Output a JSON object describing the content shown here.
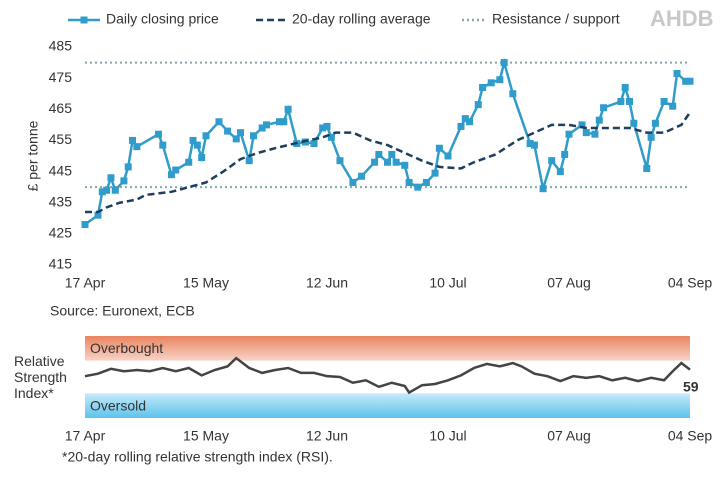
{
  "logo": "AHDB",
  "chart_data": [
    {
      "type": "line",
      "ylabel": "£ per tonne",
      "source": "Source: Euronext, ECB",
      "ylim": [
        415,
        485
      ],
      "yticks": [
        415,
        425,
        435,
        445,
        455,
        465,
        475,
        485
      ],
      "xlim": [
        "17 Apr",
        "04 Sep"
      ],
      "xticks": [
        "17 Apr",
        "15 May",
        "12 Jun",
        "10 Jul",
        "07 Aug",
        "04 Sep"
      ],
      "series": [
        {
          "name": "Daily closing price",
          "color": "#2f9ccb",
          "marker": "square",
          "x": [
            "17 Apr",
            "20 Apr",
            "21 Apr",
            "22 Apr",
            "23 Apr",
            "24 Apr",
            "26 Apr",
            "27 Apr",
            "28 Apr",
            "29 Apr",
            "04 May",
            "05 May",
            "07 May",
            "08 May",
            "11 May",
            "12 May",
            "13 May",
            "14 May",
            "15 May",
            "18 May",
            "20 May",
            "22 May",
            "23 May",
            "25 May",
            "26 May",
            "28 May",
            "29 May",
            "01 Jun",
            "02 Jun",
            "03 Jun",
            "05 Jun",
            "07 Jun",
            "09 Jun",
            "11 Jun",
            "12 Jun",
            "13 Jun",
            "15 Jun",
            "18 Jun",
            "20 Jun",
            "23 Jun",
            "24 Jun",
            "26 Jun",
            "27 Jun",
            "28 Jun",
            "30 Jun",
            "01 Jul",
            "03 Jul",
            "05 Jul",
            "07 Jul",
            "08 Jul",
            "10 Jul",
            "13 Jul",
            "14 Jul",
            "15 Jul",
            "17 Jul",
            "18 Jul",
            "20 Jul",
            "22 Jul",
            "23 Jul",
            "25 Jul",
            "29 Jul",
            "30 Jul",
            "01 Aug",
            "03 Aug",
            "05 Aug",
            "06 Aug",
            "07 Aug",
            "10 Aug",
            "11 Aug",
            "13 Aug",
            "14 Aug",
            "15 Aug",
            "19 Aug",
            "20 Aug",
            "21 Aug",
            "22 Aug",
            "25 Aug",
            "26 Aug",
            "27 Aug",
            "29 Aug",
            "31 Aug",
            "01 Sep",
            "03 Sep",
            "04 Sep"
          ],
          "values": [
            428,
            431,
            438.5,
            439,
            443,
            439,
            442,
            446.5,
            455,
            453,
            457,
            453.5,
            444,
            445.5,
            448,
            455,
            453.5,
            449.5,
            456.5,
            461,
            458,
            455.5,
            457.5,
            448.5,
            456.5,
            459,
            460,
            461,
            461,
            465,
            454,
            454.5,
            454,
            459,
            459.5,
            456,
            448.5,
            441.5,
            443.5,
            448,
            450.5,
            448,
            450.5,
            448,
            447,
            441.5,
            440,
            441.5,
            444.5,
            452.5,
            450,
            459.5,
            462,
            461,
            466.5,
            472,
            473.5,
            474.5,
            480,
            470,
            454,
            453.5,
            439.5,
            448.5,
            445,
            450.5,
            457,
            460,
            457.5,
            457,
            461.5,
            465.5,
            467.5,
            472,
            467.5,
            460.5,
            446,
            456,
            460.5,
            467.5,
            466,
            476.5,
            474,
            474
          ]
        },
        {
          "name": "20-day rolling average",
          "color": "#1d3e5c",
          "dash": "dashed",
          "x": [
            "17 Apr",
            "20 Apr",
            "22 Apr",
            "25 Apr",
            "29 Apr",
            "01 May",
            "07 May",
            "11 May",
            "15 May",
            "19 May",
            "23 May",
            "27 May",
            "31 May",
            "06 Jun",
            "11 Jun",
            "14 Jun",
            "18 Jun",
            "22 Jun",
            "26 Jun",
            "30 Jun",
            "04 Jul",
            "08 Jul",
            "13 Jul",
            "16 Jul",
            "21 Jul",
            "26 Jul",
            "30 Jul",
            "03 Aug",
            "07 Aug",
            "11 Aug",
            "15 Aug",
            "21 Aug",
            "25 Aug",
            "29 Aug",
            "02 Sep",
            "04 Sep"
          ],
          "values": [
            432,
            432,
            433.5,
            435,
            436,
            437.5,
            438.5,
            440,
            441.5,
            445,
            449,
            451,
            452.5,
            454.5,
            456,
            457.5,
            457.5,
            455,
            453.5,
            451,
            448.5,
            446.5,
            446,
            448,
            450.5,
            455,
            457.5,
            460,
            460,
            459,
            459,
            459,
            457.5,
            457.5,
            460,
            464
          ]
        }
      ],
      "reference_lines": {
        "name": "Resistance / support",
        "color": "#7fa9aa",
        "values": [
          480,
          440
        ]
      }
    },
    {
      "type": "line",
      "ylabel": "Relative Strength Index*",
      "footnote": "*20-day rolling relative strength index (RSI).",
      "ylim": [
        0,
        100
      ],
      "xlim": [
        "17 Apr",
        "04 Sep"
      ],
      "xticks": [
        "17 Apr",
        "15 May",
        "12 Jun",
        "10 Jul",
        "07 Aug",
        "04 Sep"
      ],
      "bands": [
        {
          "label": "Overbought",
          "from": 70,
          "to": 100,
          "color": "#e9845f"
        },
        {
          "label": "Oversold",
          "from": 0,
          "to": 30,
          "color": "#5cc3ec"
        }
      ],
      "series": [
        {
          "color": "#444444",
          "x": [
            "17 Apr",
            "20 Apr",
            "23 Apr",
            "26 Apr",
            "29 Apr",
            "02 May",
            "05 May",
            "08 May",
            "11 May",
            "14 May",
            "17 May",
            "20 May",
            "22 May",
            "25 May",
            "28 May",
            "31 May",
            "03 Jun",
            "06 Jun",
            "09 Jun",
            "12 Jun",
            "15 Jun",
            "18 Jun",
            "21 Jun",
            "24 Jun",
            "27 Jun",
            "30 Jun",
            "01 Jul",
            "04 Jul",
            "07 Jul",
            "10 Jul",
            "13 Jul",
            "16 Jul",
            "19 Jul",
            "22 Jul",
            "25 Jul",
            "27 Jul",
            "30 Jul",
            "02 Aug",
            "05 Aug",
            "08 Aug",
            "11 Aug",
            "14 Aug",
            "17 Aug",
            "20 Aug",
            "23 Aug",
            "26 Aug",
            "29 Aug",
            "31 Aug",
            "02 Sep",
            "04 Sep"
          ],
          "values": [
            51,
            54,
            60,
            57,
            58.5,
            57,
            61,
            57,
            61,
            52,
            58.5,
            63,
            73,
            61,
            55,
            58.5,
            61,
            55,
            55,
            51,
            50,
            43,
            46,
            38,
            43,
            39,
            31,
            40,
            41.5,
            46,
            52,
            61,
            66,
            63,
            67,
            63,
            54,
            51,
            45,
            51,
            49,
            51,
            46,
            49,
            45,
            49,
            46,
            57,
            67,
            59
          ]
        }
      ]
    }
  ]
}
